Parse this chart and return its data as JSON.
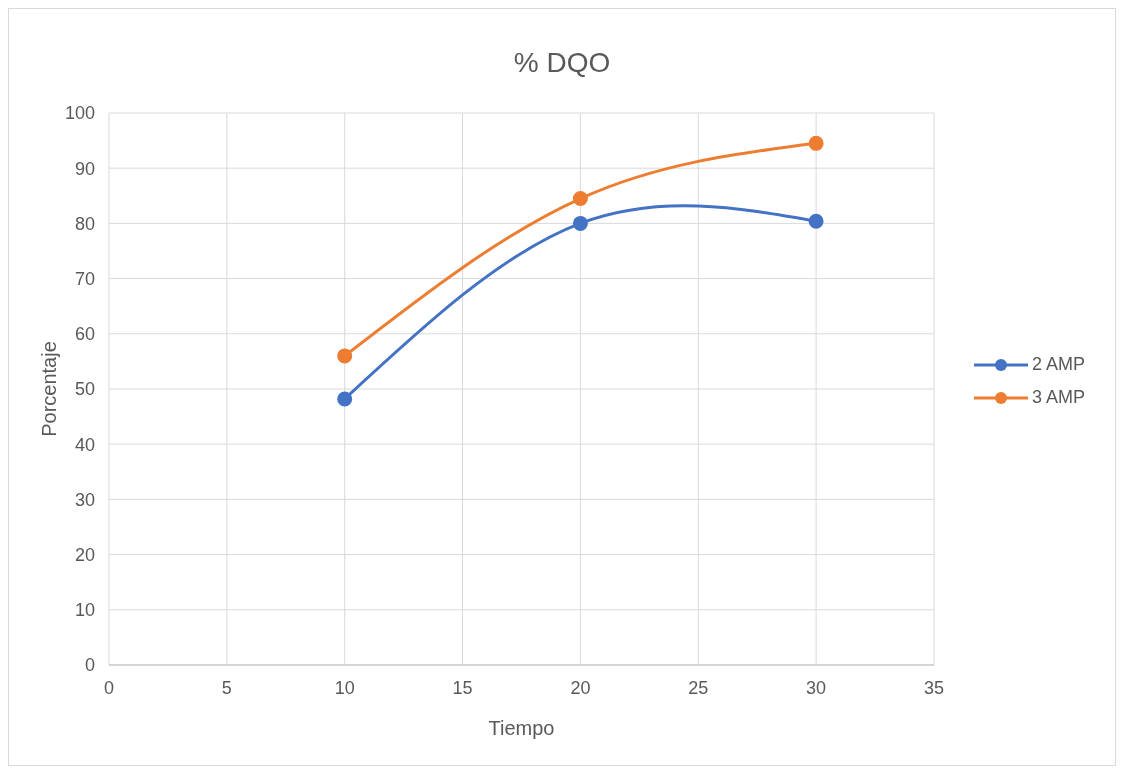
{
  "chart_data": {
    "type": "line",
    "title": "% DQO",
    "xlabel": "Tiempo",
    "ylabel": "Porcentaje",
    "x": [
      10,
      20,
      30
    ],
    "series": [
      {
        "name": "2 AMP",
        "color": "#4472c4",
        "values": [
          48.2,
          80,
          80.4
        ]
      },
      {
        "name": "3 AMP",
        "color": "#ed7d31",
        "values": [
          56,
          84.5,
          94.5
        ]
      }
    ],
    "xlim": [
      0,
      35
    ],
    "xticks": [
      0,
      5,
      10,
      15,
      20,
      25,
      30,
      35
    ],
    "ylim": [
      0,
      100
    ],
    "yticks": [
      0,
      10,
      20,
      30,
      40,
      50,
      60,
      70,
      80,
      90,
      100
    ],
    "grid": true,
    "legend": "right",
    "marker": "circle",
    "line_style": "solid"
  }
}
